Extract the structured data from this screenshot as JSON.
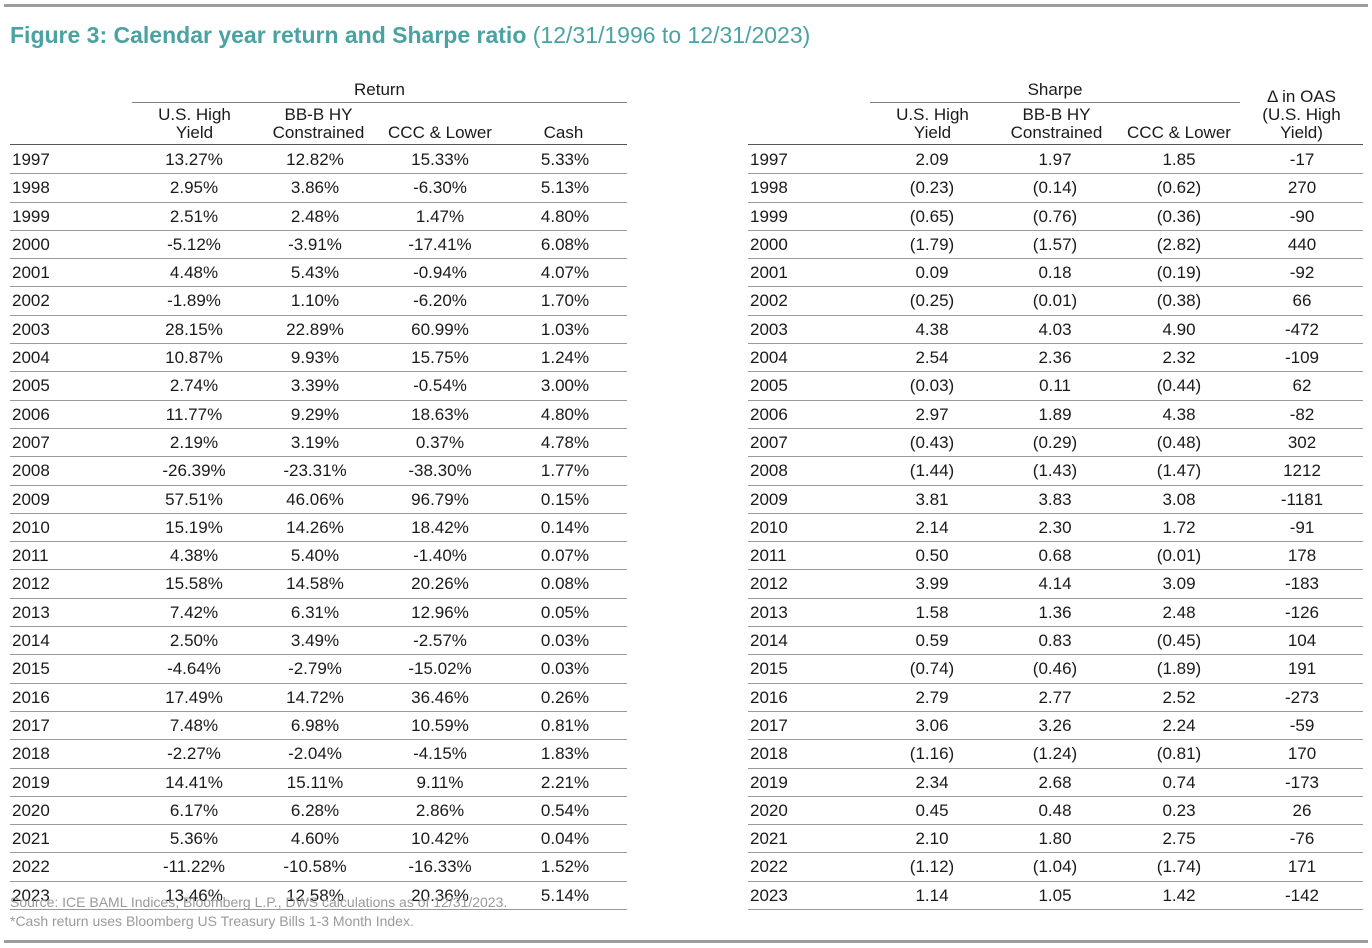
{
  "title": {
    "bold": "Figure 3: Calendar year return and Sharpe ratio",
    "light": "(12/31/1996 to 12/31/2023)"
  },
  "return_table": {
    "group_label": "Return",
    "columns": [
      [
        "U.S. High",
        "Yield"
      ],
      [
        "BB-B HY",
        "Constrained"
      ],
      [
        "",
        "CCC & Lower"
      ],
      [
        "",
        "Cash"
      ]
    ],
    "rows": [
      [
        "1997",
        "13.27%",
        "12.82%",
        "15.33%",
        "5.33%"
      ],
      [
        "1998",
        "2.95%",
        "3.86%",
        "-6.30%",
        "5.13%"
      ],
      [
        "1999",
        "2.51%",
        "2.48%",
        "1.47%",
        "4.80%"
      ],
      [
        "2000",
        "-5.12%",
        "-3.91%",
        "-17.41%",
        "6.08%"
      ],
      [
        "2001",
        "4.48%",
        "5.43%",
        "-0.94%",
        "4.07%"
      ],
      [
        "2002",
        "-1.89%",
        "1.10%",
        "-6.20%",
        "1.70%"
      ],
      [
        "2003",
        "28.15%",
        "22.89%",
        "60.99%",
        "1.03%"
      ],
      [
        "2004",
        "10.87%",
        "9.93%",
        "15.75%",
        "1.24%"
      ],
      [
        "2005",
        "2.74%",
        "3.39%",
        "-0.54%",
        "3.00%"
      ],
      [
        "2006",
        "11.77%",
        "9.29%",
        "18.63%",
        "4.80%"
      ],
      [
        "2007",
        "2.19%",
        "3.19%",
        "0.37%",
        "4.78%"
      ],
      [
        "2008",
        "-26.39%",
        "-23.31%",
        "-38.30%",
        "1.77%"
      ],
      [
        "2009",
        "57.51%",
        "46.06%",
        "96.79%",
        "0.15%"
      ],
      [
        "2010",
        "15.19%",
        "14.26%",
        "18.42%",
        "0.14%"
      ],
      [
        "2011",
        "4.38%",
        "5.40%",
        "-1.40%",
        "0.07%"
      ],
      [
        "2012",
        "15.58%",
        "14.58%",
        "20.26%",
        "0.08%"
      ],
      [
        "2013",
        "7.42%",
        "6.31%",
        "12.96%",
        "0.05%"
      ],
      [
        "2014",
        "2.50%",
        "3.49%",
        "-2.57%",
        "0.03%"
      ],
      [
        "2015",
        "-4.64%",
        "-2.79%",
        "-15.02%",
        "0.03%"
      ],
      [
        "2016",
        "17.49%",
        "14.72%",
        "36.46%",
        "0.26%"
      ],
      [
        "2017",
        "7.48%",
        "6.98%",
        "10.59%",
        "0.81%"
      ],
      [
        "2018",
        "-2.27%",
        "-2.04%",
        "-4.15%",
        "1.83%"
      ],
      [
        "2019",
        "14.41%",
        "15.11%",
        "9.11%",
        "2.21%"
      ],
      [
        "2020",
        "6.17%",
        "6.28%",
        "2.86%",
        "0.54%"
      ],
      [
        "2021",
        "5.36%",
        "4.60%",
        "10.42%",
        "0.04%"
      ],
      [
        "2022",
        "-11.22%",
        "-10.58%",
        "-16.33%",
        "1.52%"
      ],
      [
        "2023",
        "13.46%",
        "12.58%",
        "20.36%",
        "5.14%"
      ]
    ]
  },
  "sharpe_table": {
    "group_label": "Sharpe",
    "columns": [
      [
        "",
        "U.S. High",
        "Yield"
      ],
      [
        "",
        "BB-B HY",
        "Constrained"
      ],
      [
        "",
        "",
        "CCC & Lower"
      ],
      [
        "Δ in OAS",
        "(U.S. High",
        "Yield)"
      ]
    ],
    "rows": [
      [
        "1997",
        "2.09",
        "1.97",
        "1.85",
        "-17"
      ],
      [
        "1998",
        "(0.23)",
        "(0.14)",
        "(0.62)",
        "270"
      ],
      [
        "1999",
        "(0.65)",
        "(0.76)",
        "(0.36)",
        "-90"
      ],
      [
        "2000",
        "(1.79)",
        "(1.57)",
        "(2.82)",
        "440"
      ],
      [
        "2001",
        "0.09",
        "0.18",
        "(0.19)",
        "-92"
      ],
      [
        "2002",
        "(0.25)",
        "(0.01)",
        "(0.38)",
        "66"
      ],
      [
        "2003",
        "4.38",
        "4.03",
        "4.90",
        "-472"
      ],
      [
        "2004",
        "2.54",
        "2.36",
        "2.32",
        "-109"
      ],
      [
        "2005",
        "(0.03)",
        "0.11",
        "(0.44)",
        "62"
      ],
      [
        "2006",
        "2.97",
        "1.89",
        "4.38",
        "-82"
      ],
      [
        "2007",
        "(0.43)",
        "(0.29)",
        "(0.48)",
        "302"
      ],
      [
        "2008",
        "(1.44)",
        "(1.43)",
        "(1.47)",
        "1212"
      ],
      [
        "2009",
        "3.81",
        "3.83",
        "3.08",
        "-1181"
      ],
      [
        "2010",
        "2.14",
        "2.30",
        "1.72",
        "-91"
      ],
      [
        "2011",
        "0.50",
        "0.68",
        "(0.01)",
        "178"
      ],
      [
        "2012",
        "3.99",
        "4.14",
        "3.09",
        "-183"
      ],
      [
        "2013",
        "1.58",
        "1.36",
        "2.48",
        "-126"
      ],
      [
        "2014",
        "0.59",
        "0.83",
        "(0.45)",
        "104"
      ],
      [
        "2015",
        "(0.74)",
        "(0.46)",
        "(1.89)",
        "191"
      ],
      [
        "2016",
        "2.79",
        "2.77",
        "2.52",
        "-273"
      ],
      [
        "2017",
        "3.06",
        "3.26",
        "2.24",
        "-59"
      ],
      [
        "2018",
        "(1.16)",
        "(1.24)",
        "(0.81)",
        "170"
      ],
      [
        "2019",
        "2.34",
        "2.68",
        "0.74",
        "-173"
      ],
      [
        "2020",
        "0.45",
        "0.48",
        "0.23",
        "26"
      ],
      [
        "2021",
        "2.10",
        "1.80",
        "2.75",
        "-76"
      ],
      [
        "2022",
        "(1.12)",
        "(1.04)",
        "(1.74)",
        "171"
      ],
      [
        "2023",
        "1.14",
        "1.05",
        "1.42",
        "-142"
      ]
    ]
  },
  "footnotes": [
    "Source: ICE BAML Indices, Bloomberg L.P., DWS calculations as of 12/31/2023.",
    "*Cash return uses Bloomberg US Treasury Bills 1-3 Month Index."
  ]
}
